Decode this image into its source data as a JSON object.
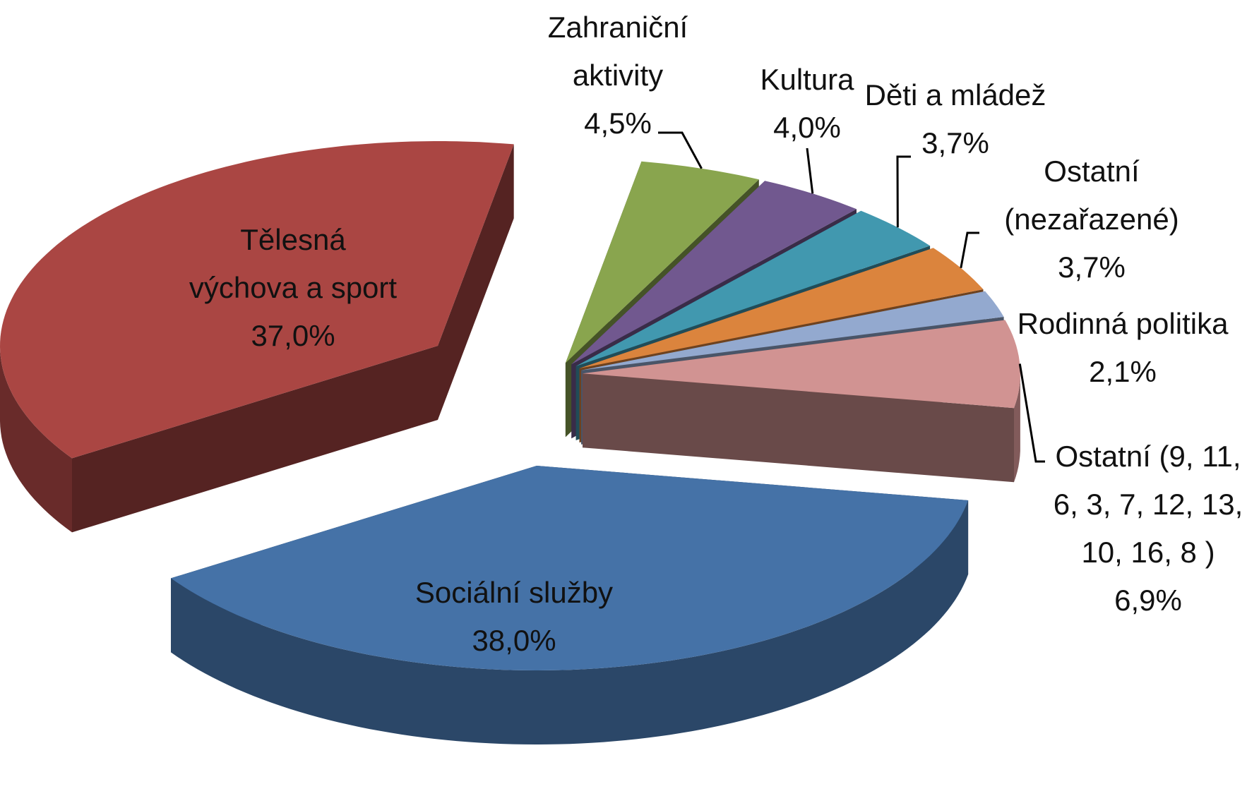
{
  "chart_data": {
    "type": "pie",
    "categories": [
      "Zahraniční aktivity",
      "Kultura",
      "Děti a mládež",
      "Ostatní (nezařazené)",
      "Rodinná politika",
      "Ostatní (9, 11, 6, 3, 7, 12, 13, 10, 16, 8 )",
      "Sociální služby",
      "Tělesná výchova a sport"
    ],
    "values": [
      4.5,
      4.0,
      3.7,
      3.7,
      2.1,
      6.9,
      38.0,
      37.0
    ],
    "value_labels": [
      "4,5%",
      "4,0%",
      "3,7%",
      "3,7%",
      "2,1%",
      "6,9%",
      "38,0%",
      "37,0%"
    ],
    "colors": [
      "#89a54e",
      "#71588f",
      "#4198af",
      "#db843d",
      "#93a9cf",
      "#d19392",
      "#4572a7",
      "#aa4643"
    ]
  }
}
